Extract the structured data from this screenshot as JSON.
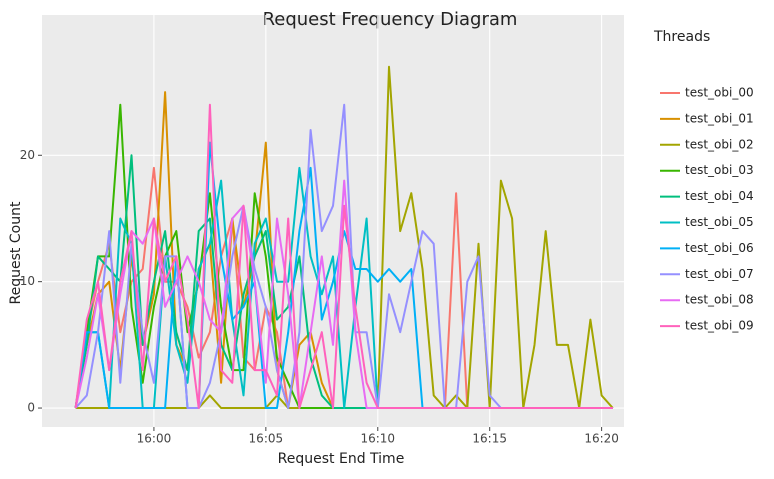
{
  "chart_data": {
    "type": "line",
    "title": "Request Frequency Diagram",
    "x_label": "Request End Time",
    "y_label": "Request Count",
    "legend_title": "Threads",
    "legend_position": "right",
    "grid": true,
    "x": [
      "15:56:30",
      "15:57:00",
      "15:57:30",
      "15:58:00",
      "15:58:30",
      "15:59:00",
      "15:59:30",
      "16:00:00",
      "16:00:30",
      "16:01:00",
      "16:01:30",
      "16:02:00",
      "16:02:30",
      "16:03:00",
      "16:03:30",
      "16:04:00",
      "16:04:30",
      "16:05:00",
      "16:05:30",
      "16:06:00",
      "16:06:30",
      "16:07:00",
      "16:07:30",
      "16:08:00",
      "16:08:30",
      "16:09:00",
      "16:09:30",
      "16:10:00",
      "16:10:30",
      "16:11:00",
      "16:11:30",
      "16:12:00",
      "16:12:30",
      "16:13:00",
      "16:13:30",
      "16:14:00",
      "16:14:30",
      "16:15:00",
      "16:15:30",
      "16:16:00",
      "16:16:30",
      "16:17:00",
      "16:17:30",
      "16:18:00",
      "16:18:30",
      "16:19:00",
      "16:19:30",
      "16:20:00",
      "16:20:30"
    ],
    "xlim": [
      "15:55:00",
      "16:21:00"
    ],
    "xticks": [
      "16:00",
      "16:05",
      "16:10",
      "16:15",
      "16:20"
    ],
    "ylim": [
      -1.5,
      31.1
    ],
    "yticks": [
      0,
      10,
      20
    ],
    "series": [
      {
        "name": "test_obi_00",
        "color": "#F8766D",
        "values": [
          0,
          6,
          10,
          13,
          6,
          10,
          11,
          19,
          10,
          10,
          8,
          4,
          6,
          12,
          15,
          4,
          3,
          8,
          6,
          0,
          0,
          0,
          0,
          0,
          0,
          0,
          0,
          0,
          0,
          0,
          0,
          0,
          0,
          0,
          17,
          0,
          0,
          0,
          0,
          0,
          0,
          0,
          0,
          0,
          0,
          0,
          0,
          0,
          0
        ]
      },
      {
        "name": "test_obi_01",
        "color": "#D89000",
        "values": [
          0,
          5,
          9,
          10,
          3,
          12,
          5,
          9,
          25,
          5,
          3,
          11,
          13,
          2,
          15,
          8,
          12,
          21,
          3,
          0,
          5,
          6,
          2,
          0,
          0,
          0,
          0,
          0,
          0,
          0,
          0,
          0,
          0,
          0,
          0,
          0,
          0,
          0,
          0,
          0,
          0,
          0,
          0,
          0,
          0,
          0,
          0,
          0,
          0
        ]
      },
      {
        "name": "test_obi_02",
        "color": "#A3A500",
        "values": [
          0,
          0,
          0,
          0,
          0,
          0,
          0,
          0,
          0,
          0,
          0,
          0,
          1,
          0,
          0,
          0,
          0,
          0,
          1,
          0,
          0,
          0,
          0,
          0,
          0,
          0,
          0,
          0,
          27,
          14,
          17,
          11,
          1,
          0,
          1,
          0,
          13,
          0,
          18,
          15,
          0,
          5,
          14,
          5,
          5,
          0,
          7,
          1,
          0
        ]
      },
      {
        "name": "test_obi_03",
        "color": "#39B600",
        "values": [
          0,
          6,
          12,
          12,
          24,
          8,
          2,
          8,
          12,
          14,
          6,
          10,
          17,
          8,
          3,
          3,
          17,
          12,
          4,
          2,
          0,
          0,
          0,
          0,
          0,
          0,
          0,
          0,
          0,
          0,
          0,
          0,
          0,
          0,
          0,
          0,
          0,
          0,
          0,
          0,
          0,
          0,
          0,
          0,
          0,
          0,
          0,
          0,
          0
        ]
      },
      {
        "name": "test_obi_04",
        "color": "#00BF7D",
        "values": [
          0,
          5,
          12,
          11,
          10,
          20,
          5,
          10,
          14,
          6,
          3,
          14,
          15,
          5,
          3,
          9,
          12,
          14,
          7,
          8,
          12,
          4,
          1,
          0,
          0,
          0,
          0,
          0,
          0,
          0,
          0,
          0,
          0,
          0,
          0,
          0,
          0,
          0,
          0,
          0,
          0,
          0,
          0,
          0,
          0,
          0,
          0,
          0,
          0
        ]
      },
      {
        "name": "test_obi_05",
        "color": "#00BFC4",
        "values": [
          0,
          6,
          6,
          0,
          15,
          13,
          0,
          0,
          12,
          5,
          2,
          11,
          13,
          18,
          7,
          1,
          13,
          15,
          10,
          10,
          19,
          12,
          9,
          12,
          0,
          8,
          15,
          0,
          0,
          0,
          0,
          0,
          0,
          0,
          0,
          0,
          0,
          0,
          0,
          0,
          0,
          0,
          0,
          0,
          0,
          0,
          0,
          0,
          0
        ]
      },
      {
        "name": "test_obi_06",
        "color": "#00B0F6",
        "values": [
          0,
          6,
          6,
          0,
          0,
          0,
          0,
          0,
          0,
          12,
          0,
          0,
          21,
          12,
          7,
          8,
          10,
          0,
          0,
          6,
          14,
          19,
          7,
          10,
          14,
          11,
          11,
          10,
          11,
          10,
          11,
          0,
          0,
          0,
          0,
          0,
          0,
          0,
          0,
          0,
          0,
          0,
          0,
          0,
          0,
          0,
          0,
          0,
          0
        ]
      },
      {
        "name": "test_obi_07",
        "color": "#9590FF",
        "values": [
          0,
          1,
          6,
          14,
          2,
          13,
          6,
          2,
          12,
          12,
          0,
          0,
          2,
          6,
          12,
          16,
          11,
          8,
          3,
          0,
          6,
          22,
          14,
          16,
          24,
          6,
          6,
          0,
          9,
          6,
          10,
          14,
          13,
          0,
          0,
          10,
          12,
          1,
          0,
          0,
          0,
          0,
          0,
          0,
          0,
          0,
          0,
          0,
          0
        ]
      },
      {
        "name": "test_obi_08",
        "color": "#E76BF3",
        "values": [
          0,
          4,
          9,
          3,
          9,
          14,
          13,
          15,
          8,
          10,
          12,
          10,
          7,
          6,
          15,
          16,
          10,
          2,
          15,
          9,
          0,
          6,
          12,
          5,
          18,
          6,
          0,
          0,
          0,
          0,
          0,
          0,
          0,
          0,
          0,
          0,
          0,
          0,
          0,
          0,
          0,
          0,
          0,
          0,
          0,
          0,
          0,
          0,
          0
        ]
      },
      {
        "name": "test_obi_09",
        "color": "#FF62BC",
        "values": [
          0,
          7,
          10,
          3,
          10,
          14,
          3,
          15,
          10,
          12,
          7,
          0,
          24,
          3,
          2,
          16,
          3,
          3,
          1,
          15,
          0,
          3,
          6,
          0,
          16,
          8,
          2,
          0,
          0,
          0,
          0,
          0,
          0,
          0,
          0,
          0,
          0,
          0,
          0,
          0,
          0,
          0,
          0,
          0,
          0,
          0,
          0,
          0,
          0
        ]
      }
    ]
  }
}
